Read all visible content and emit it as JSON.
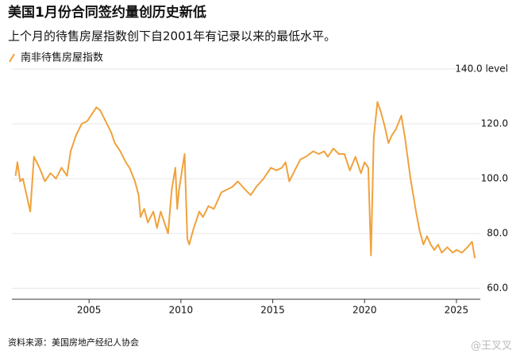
{
  "chart_data": {
    "type": "line",
    "title": "美国1月份合同签约量创历史新低",
    "subtitle": "上个月的待售房屋指数创下自2001年有记录以来的最低水平。",
    "source": "资料来源：美国房地产经纪人协会",
    "x": [
      2001.0,
      2001.1,
      2001.25,
      2001.4,
      2001.6,
      2001.8,
      2002.0,
      2002.3,
      2002.6,
      2002.9,
      2003.2,
      2003.5,
      2003.8,
      2004.0,
      2004.3,
      2004.6,
      2004.9,
      2005.2,
      2005.4,
      2005.6,
      2005.9,
      2006.2,
      2006.4,
      2006.7,
      2007.0,
      2007.2,
      2007.5,
      2007.7,
      2007.8,
      2008.0,
      2008.2,
      2008.5,
      2008.7,
      2008.9,
      2009.1,
      2009.3,
      2009.5,
      2009.7,
      2009.8,
      2009.9,
      2010.2,
      2010.35,
      2010.45,
      2010.7,
      2011.0,
      2011.2,
      2011.5,
      2011.8,
      2012.2,
      2012.5,
      2012.8,
      2013.1,
      2013.5,
      2013.8,
      2014.1,
      2014.5,
      2014.9,
      2015.2,
      2015.5,
      2015.7,
      2015.9,
      2016.2,
      2016.5,
      2016.8,
      2017.2,
      2017.5,
      2017.8,
      2018.0,
      2018.3,
      2018.6,
      2018.9,
      2019.2,
      2019.5,
      2019.8,
      2020.0,
      2020.2,
      2020.35,
      2020.5,
      2020.7,
      2020.9,
      2021.1,
      2021.3,
      2021.5,
      2021.7,
      2022.0,
      2022.2,
      2022.5,
      2022.8,
      2023.0,
      2023.2,
      2023.4,
      2023.6,
      2023.8,
      2024.0,
      2024.2,
      2024.5,
      2024.8,
      2025.0,
      2025.3,
      2025.6,
      2025.85,
      2026.0
    ],
    "series": [
      {
        "name": "南非待售房屋指数",
        "color": "#f0a23c",
        "values": [
          101,
          106,
          99,
          100,
          94,
          88,
          108,
          104,
          99,
          102,
          100,
          104,
          101,
          110,
          116,
          120,
          121,
          124,
          126,
          125,
          121,
          117,
          113,
          110,
          106,
          104,
          99,
          94,
          86,
          89,
          84,
          88,
          82,
          88,
          84,
          80,
          96,
          104,
          89,
          96,
          109,
          78,
          76,
          82,
          88,
          86,
          90,
          89,
          95,
          96,
          97,
          99,
          96,
          94,
          97,
          100,
          104,
          103,
          104,
          106,
          99,
          103,
          107,
          108,
          110,
          109,
          110,
          108,
          111,
          109,
          109,
          103,
          108,
          102,
          106,
          104,
          72,
          115,
          128,
          124,
          119,
          113,
          116,
          118,
          123,
          115,
          100,
          88,
          81,
          76,
          79,
          76,
          74,
          76,
          73,
          75,
          73,
          74,
          73,
          75,
          77,
          71
        ]
      }
    ],
    "xlim": [
      2000.8,
      2026.3
    ],
    "xticks": [
      2005,
      2010,
      2015,
      2020,
      2025
    ],
    "ylim": [
      56,
      140
    ],
    "yticks": [
      {
        "value": 60,
        "label": "60.0"
      },
      {
        "value": 80,
        "label": "80.0"
      },
      {
        "value": 100,
        "label": "100.0"
      },
      {
        "value": 120,
        "label": "120.0"
      },
      {
        "value": 140,
        "label": "140.0 level"
      }
    ],
    "grid": true
  },
  "watermark": "@王叉叉"
}
